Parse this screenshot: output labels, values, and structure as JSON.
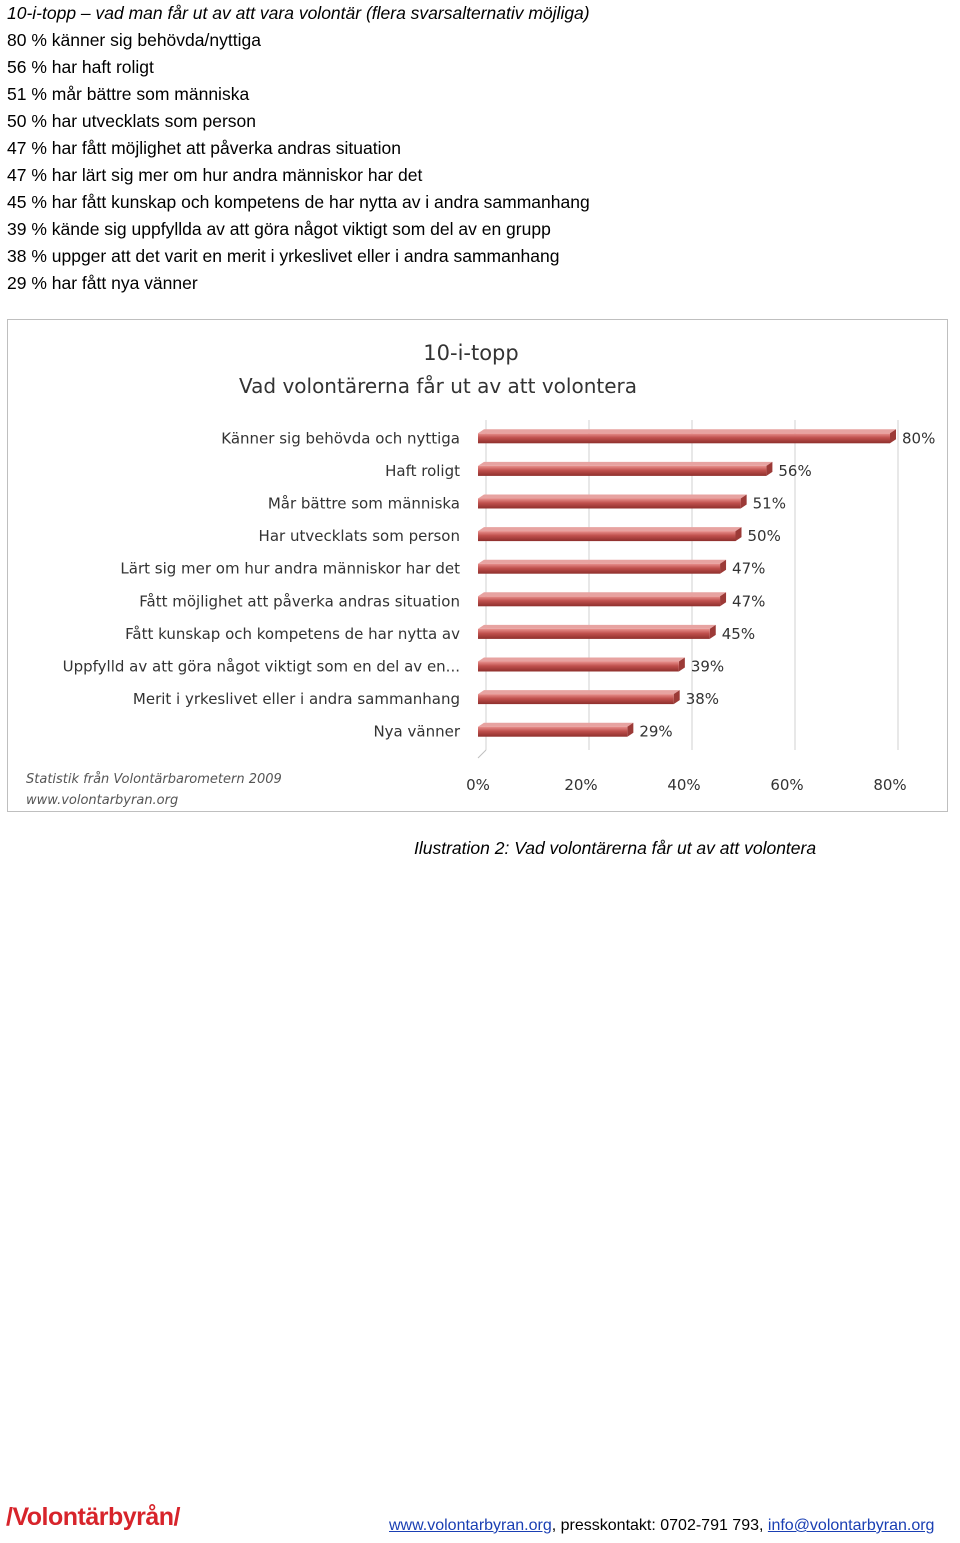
{
  "intro": {
    "heading": "10-i-topp – vad man får ut av att vara volontär (flera svarsalternativ möjliga)",
    "items": [
      "80 % känner sig behövda/nyttiga",
      "56 % har haft roligt",
      "51 % mår bättre som människa",
      "50 % har utvecklats som person",
      "47 % har fått möjlighet att påverka andras situation",
      "47 % har lärt sig mer om hur andra människor har det",
      "45 % har fått kunskap och kompetens de har nytta av i andra sammanhang",
      "39 % kände sig uppfyllda av att göra något viktigt som del av en grupp",
      "38 % uppger att det varit en merit i yrkeslivet eller i andra sammanhang",
      "29 % har fått nya vänner"
    ]
  },
  "chart_data": {
    "type": "bar",
    "orientation": "horizontal",
    "title": "10-i-topp",
    "subtitle": "Vad volontärerna får ut av att volontera",
    "categories": [
      "Känner sig behövda och nyttiga",
      "Haft roligt",
      "Mår bättre som människa",
      "Har utvecklats som person",
      "Lärt sig mer om hur andra människor har det",
      "Fått möjlighet att påverka andras situation",
      "Fått kunskap och kompetens de har nytta av",
      "Uppfylld av att göra något viktigt som en del av en...",
      "Merit i yrkeslivet eller i andra sammanhang",
      "Nya vänner"
    ],
    "values": [
      80,
      56,
      51,
      50,
      47,
      47,
      45,
      39,
      38,
      29
    ],
    "value_labels": [
      "80%",
      "56%",
      "51%",
      "50%",
      "47%",
      "47%",
      "45%",
      "39%",
      "38%",
      "29%"
    ],
    "xlim": [
      0,
      80
    ],
    "xticks": [
      0,
      20,
      40,
      60,
      80
    ],
    "xtick_labels": [
      "0%",
      "20%",
      "40%",
      "60%",
      "80%"
    ],
    "grid": true,
    "bar_color": "#c0504d",
    "source_lines": [
      "Statistik från Volontärbarometern 2009",
      "www.volontarbyran.org"
    ]
  },
  "caption": "Ilustration 2: Vad volontärerna får ut av att volontera",
  "logo": "/Volontärbyrån/",
  "footer": {
    "link1": "www.volontarbyran.org",
    "middle": ", presskontakt: 0702-791 793, ",
    "link2": "info@volontarbyran.org"
  }
}
